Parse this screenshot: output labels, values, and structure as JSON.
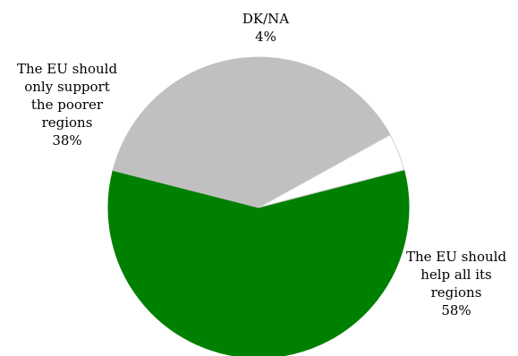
{
  "chart_data": {
    "type": "pie",
    "slices": [
      {
        "label_lines": [
          "The EU should",
          "help all its",
          "regions"
        ],
        "value": 58,
        "value_label": "58%",
        "color": "#008000"
      },
      {
        "label_lines": [
          "The EU should",
          "only support",
          "the poorer",
          "regions"
        ],
        "value": 38,
        "value_label": "38%",
        "color": "#c0c0c0"
      },
      {
        "label_lines": [
          "DK/NA"
        ],
        "value": 4,
        "value_label": "4%",
        "color": "#ffffff"
      }
    ]
  }
}
